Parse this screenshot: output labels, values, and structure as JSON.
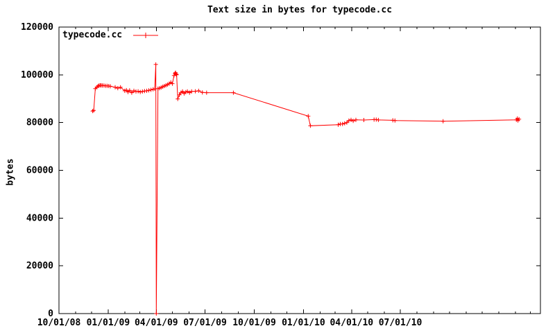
{
  "colors": {
    "background": "#ffffff",
    "foreground": "#000000"
  },
  "chart_data": {
    "type": "line",
    "title": "Text size in bytes for typecode.cc",
    "xlabel": "",
    "ylabel": "bytes",
    "grid": false,
    "border": true,
    "legend": {
      "position": "top-left",
      "entries": [
        "typecode.cc"
      ]
    },
    "y_axis": {
      "range": [
        0,
        120000
      ],
      "tick_step": 20000,
      "tick_labels": [
        "0",
        "20000",
        "40000",
        "60000",
        "80000",
        "100000",
        "120000"
      ]
    },
    "x_axis": {
      "type": "time",
      "label_format": "MM/DD/YY",
      "range": [
        "2008-10-01",
        "2011-03-20"
      ],
      "minor_tick_interval": "1 month",
      "major_ticks": [
        {
          "label": "10/01/08",
          "date": "2008-10-01"
        },
        {
          "label": "01/01/09",
          "date": "2009-01-01"
        },
        {
          "label": "04/01/09",
          "date": "2009-04-01"
        },
        {
          "label": "07/01/09",
          "date": "2009-07-01"
        },
        {
          "label": "10/01/09",
          "date": "2009-10-01"
        },
        {
          "label": "01/01/10",
          "date": "2010-01-01"
        },
        {
          "label": "04/01/10",
          "date": "2010-04-01"
        },
        {
          "label": "07/01/10",
          "date": "2010-07-01"
        }
      ]
    },
    "series": [
      {
        "name": "typecode.cc",
        "color": "#ff0000",
        "marker": "+",
        "points": [
          [
            "2008-12-03",
            84800
          ],
          [
            "2008-12-05",
            85100
          ],
          [
            "2008-12-08",
            94200
          ],
          [
            "2008-12-11",
            94800
          ],
          [
            "2008-12-13",
            95300
          ],
          [
            "2008-12-15",
            95500
          ],
          [
            "2008-12-17",
            95600
          ],
          [
            "2008-12-19",
            95600
          ],
          [
            "2008-12-21",
            95500
          ],
          [
            "2008-12-24",
            95500
          ],
          [
            "2008-12-27",
            95400
          ],
          [
            "2008-12-30",
            95400
          ],
          [
            "2009-01-02",
            95300
          ],
          [
            "2009-01-05",
            95200
          ],
          [
            "2009-01-14",
            94800
          ],
          [
            "2009-01-19",
            94400
          ],
          [
            "2009-01-24",
            94800
          ],
          [
            "2009-02-01",
            93300
          ],
          [
            "2009-02-04",
            93600
          ],
          [
            "2009-02-07",
            92800
          ],
          [
            "2009-02-10",
            93500
          ],
          [
            "2009-02-14",
            92500
          ],
          [
            "2009-02-18",
            93300
          ],
          [
            "2009-02-22",
            93000
          ],
          [
            "2009-02-26",
            93100
          ],
          [
            "2009-03-02",
            92800
          ],
          [
            "2009-03-06",
            93000
          ],
          [
            "2009-03-10",
            93200
          ],
          [
            "2009-03-14",
            93300
          ],
          [
            "2009-03-18",
            93500
          ],
          [
            "2009-03-22",
            93700
          ],
          [
            "2009-03-26",
            93900
          ],
          [
            "2009-03-29",
            94100
          ],
          [
            "2009-03-31",
            104350
          ],
          [
            "2009-04-01",
            0
          ],
          [
            "2009-04-04",
            94200
          ],
          [
            "2009-04-07",
            94400
          ],
          [
            "2009-04-10",
            94700
          ],
          [
            "2009-04-13",
            95000
          ],
          [
            "2009-04-16",
            95300
          ],
          [
            "2009-04-19",
            95600
          ],
          [
            "2009-04-22",
            95900
          ],
          [
            "2009-04-25",
            96300
          ],
          [
            "2009-04-28",
            96800
          ],
          [
            "2009-05-01",
            96300
          ],
          [
            "2009-05-04",
            99700
          ],
          [
            "2009-05-06",
            100600
          ],
          [
            "2009-05-07",
            100900
          ],
          [
            "2009-05-08",
            100300
          ],
          [
            "2009-05-09",
            100000
          ],
          [
            "2009-05-11",
            89900
          ],
          [
            "2009-05-14",
            91600
          ],
          [
            "2009-05-17",
            92500
          ],
          [
            "2009-05-20",
            93050
          ],
          [
            "2009-05-23",
            92200
          ],
          [
            "2009-05-26",
            92750
          ],
          [
            "2009-05-29",
            93050
          ],
          [
            "2009-06-02",
            92500
          ],
          [
            "2009-06-06",
            93050
          ],
          [
            "2009-06-13",
            93100
          ],
          [
            "2009-06-19",
            93300
          ],
          [
            "2009-06-26",
            92600
          ],
          [
            "2009-07-04",
            92500
          ],
          [
            "2009-08-23",
            92500
          ],
          [
            "2010-01-10",
            82700
          ],
          [
            "2010-01-14",
            78650
          ],
          [
            "2010-03-07",
            79130
          ],
          [
            "2010-03-11",
            79420
          ],
          [
            "2010-03-15",
            79420
          ],
          [
            "2010-03-19",
            79710
          ],
          [
            "2010-03-23",
            80000
          ],
          [
            "2010-03-27",
            80870
          ],
          [
            "2010-03-31",
            81160
          ],
          [
            "2010-04-04",
            80700
          ],
          [
            "2010-04-09",
            81160
          ],
          [
            "2010-04-24",
            81070
          ],
          [
            "2010-05-13",
            81250
          ],
          [
            "2010-05-17",
            81250
          ],
          [
            "2010-05-21",
            81100
          ],
          [
            "2010-06-17",
            80960
          ],
          [
            "2010-06-21",
            80870
          ],
          [
            "2010-09-19",
            80580
          ],
          [
            "2011-02-03",
            81160
          ],
          [
            "2011-02-05",
            81740
          ],
          [
            "2011-02-06",
            80870
          ],
          [
            "2011-02-08",
            81450
          ]
        ]
      }
    ]
  }
}
